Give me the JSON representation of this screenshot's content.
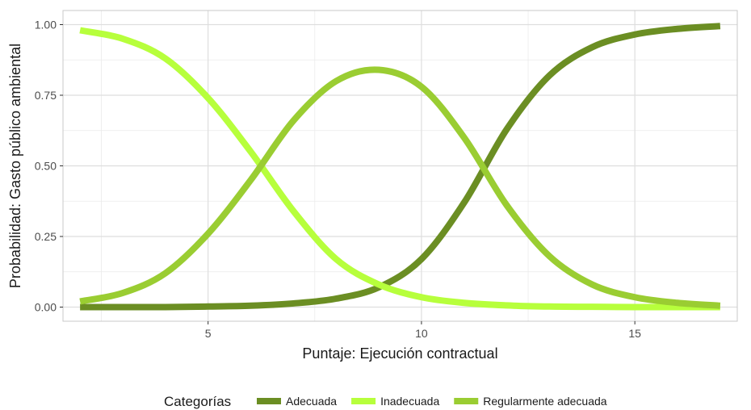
{
  "chart_data": {
    "type": "line",
    "xlabel": "Puntaje: Ejecución contractual",
    "ylabel": "Probabilidad: Gasto público ambiental",
    "xlim": [
      1.6,
      17.4
    ],
    "ylim": [
      -0.05,
      1.05
    ],
    "x_ticks": [
      5,
      10,
      15
    ],
    "x_tick_labels": [
      "5",
      "10",
      "15"
    ],
    "y_ticks": [
      0,
      0.25,
      0.5,
      0.75,
      1
    ],
    "y_tick_labels": [
      "0.00",
      "0.25",
      "0.50",
      "0.75",
      "1.00"
    ],
    "grid": true,
    "legend": {
      "title": "Categorías",
      "position": "bottom"
    },
    "series": [
      {
        "name": "Adecuada",
        "color": "#6b8e23",
        "x": [
          2,
          3,
          4,
          5,
          6,
          7,
          8,
          9,
          10,
          11,
          12,
          13,
          14,
          15,
          16,
          17
        ],
        "y": [
          0.0,
          0.0,
          0.0,
          0.002,
          0.005,
          0.013,
          0.03,
          0.07,
          0.17,
          0.37,
          0.63,
          0.82,
          0.92,
          0.965,
          0.985,
          0.995
        ]
      },
      {
        "name": "Inadecuada",
        "color": "#b7ff3c",
        "x": [
          2,
          3,
          4,
          5,
          6,
          7,
          8,
          9,
          10,
          11,
          12,
          13,
          14,
          15,
          16,
          17
        ],
        "y": [
          0.98,
          0.95,
          0.88,
          0.74,
          0.55,
          0.34,
          0.17,
          0.08,
          0.035,
          0.015,
          0.006,
          0.002,
          0.001,
          0.0,
          0.0,
          0.0
        ]
      },
      {
        "name": "Regularmente adecuada",
        "color": "#9acd32",
        "x": [
          2,
          3,
          4,
          5,
          6,
          7,
          8,
          9,
          10,
          11,
          12,
          13,
          14,
          15,
          16,
          17
        ],
        "y": [
          0.02,
          0.05,
          0.12,
          0.26,
          0.45,
          0.66,
          0.8,
          0.84,
          0.78,
          0.6,
          0.36,
          0.18,
          0.08,
          0.035,
          0.015,
          0.005
        ]
      }
    ]
  }
}
